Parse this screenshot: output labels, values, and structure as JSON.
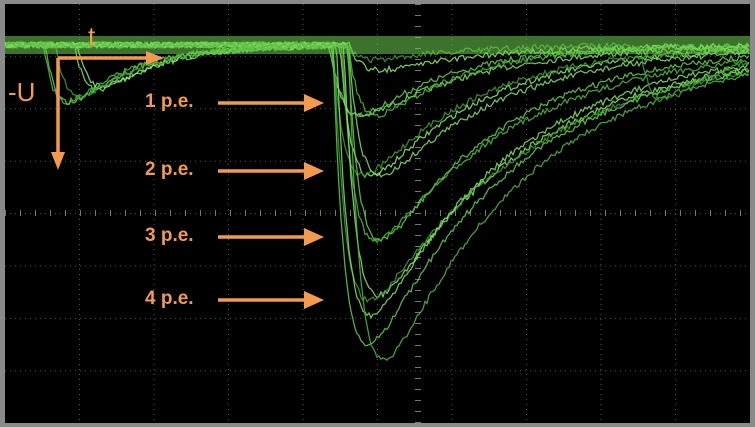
{
  "axes": {
    "x_label": "t",
    "y_label": "-U"
  },
  "annotations": [
    {
      "label": "1 p.e."
    },
    {
      "label": "2 p.e."
    },
    {
      "label": "3 p.e."
    },
    {
      "label": "4 p.e."
    }
  ]
}
